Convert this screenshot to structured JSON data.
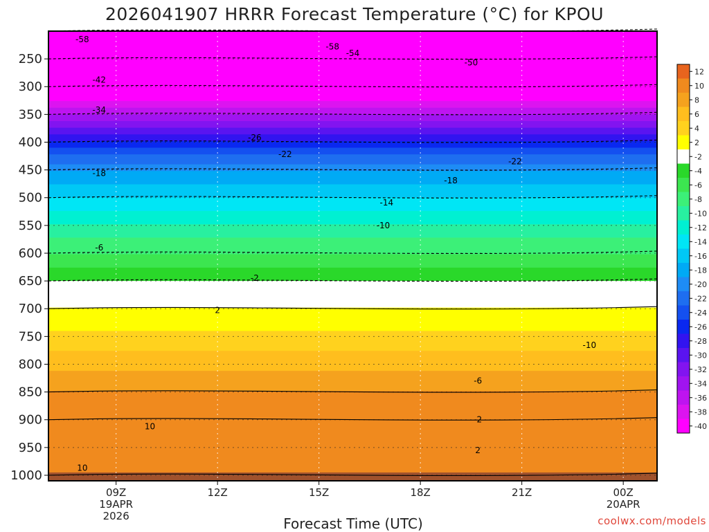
{
  "title": "2026041907 HRRR Forecast Temperature (°C) for KPOU",
  "credit": "coolwx.com/models",
  "colors": {
    "ground": "#a0522d",
    "frame": "#000000",
    "grid": "#999999"
  },
  "chart_data": {
    "type": "heatmap",
    "title": "2026041907 HRRR Forecast Temperature (°C) for KPOU",
    "xlabel": "Forecast Time (UTC)",
    "ylabel": "",
    "x_range_hours": [
      7,
      25
    ],
    "y_range_hpa": [
      200,
      1010
    ],
    "y_ticks": [
      {
        "value": 250,
        "label": "250"
      },
      {
        "value": 300,
        "label": "300"
      },
      {
        "value": 350,
        "label": "350"
      },
      {
        "value": 400,
        "label": "400"
      },
      {
        "value": 450,
        "label": "450"
      },
      {
        "value": 500,
        "label": "500"
      },
      {
        "value": 550,
        "label": "550"
      },
      {
        "value": 600,
        "label": "600"
      },
      {
        "value": 650,
        "label": "650"
      },
      {
        "value": 700,
        "label": "700"
      },
      {
        "value": 750,
        "label": "750"
      },
      {
        "value": 800,
        "label": "800"
      },
      {
        "value": 850,
        "label": "850"
      },
      {
        "value": 900,
        "label": "900"
      },
      {
        "value": 950,
        "label": "950"
      },
      {
        "value": 1000,
        "label": "1000"
      }
    ],
    "x_ticks": [
      {
        "hour": 9,
        "lines": [
          "09Z",
          "19APR",
          "2026"
        ]
      },
      {
        "hour": 12,
        "lines": [
          "12Z"
        ]
      },
      {
        "hour": 15,
        "lines": [
          "15Z"
        ]
      },
      {
        "hour": 18,
        "lines": [
          "18Z"
        ]
      },
      {
        "hour": 21,
        "lines": [
          "21Z"
        ]
      },
      {
        "hour": 24,
        "lines": [
          "00Z",
          "20APR"
        ]
      }
    ],
    "colorbar": [
      {
        "label": "12",
        "color": "#e8641e"
      },
      {
        "label": "10",
        "color": "#f08a1e"
      },
      {
        "label": "8",
        "color": "#f5a21e"
      },
      {
        "label": "6",
        "color": "#ffbe1e"
      },
      {
        "label": "4",
        "color": "#ffd21e"
      },
      {
        "label": "2",
        "color": "#ffff00"
      },
      {
        "label": "-2",
        "color": "#ffffff"
      },
      {
        "label": "-4",
        "color": "#2ad82a"
      },
      {
        "label": "-6",
        "color": "#3ce650"
      },
      {
        "label": "-8",
        "color": "#3cf078"
      },
      {
        "label": "-10",
        "color": "#28f0a0"
      },
      {
        "label": "-12",
        "color": "#00f0d2"
      },
      {
        "label": "-14",
        "color": "#00e6f5"
      },
      {
        "label": "-16",
        "color": "#00c8f5"
      },
      {
        "label": "-18",
        "color": "#00aaf5"
      },
      {
        "label": "-20",
        "color": "#1e8cf5"
      },
      {
        "label": "-22",
        "color": "#1e6ef0"
      },
      {
        "label": "-24",
        "color": "#1450f0"
      },
      {
        "label": "-26",
        "color": "#0a28f0"
      },
      {
        "label": "-28",
        "color": "#3214f0"
      },
      {
        "label": "-30",
        "color": "#5a14f0"
      },
      {
        "label": "-32",
        "color": "#8214f0"
      },
      {
        "label": "-34",
        "color": "#a014f0"
      },
      {
        "label": "-36",
        "color": "#be14f0"
      },
      {
        "label": "-38",
        "color": "#dc14f0"
      },
      {
        "label": "-40",
        "color": "#ff00ff"
      }
    ],
    "temperature_profile_09Z": [
      {
        "p": 1000,
        "t": 10
      },
      {
        "p": 900,
        "t": 11
      },
      {
        "p": 850,
        "t": 10
      },
      {
        "p": 700,
        "t": 2
      },
      {
        "p": 650,
        "t": -2
      },
      {
        "p": 600,
        "t": -6
      },
      {
        "p": 500,
        "t": -14
      },
      {
        "p": 450,
        "t": -18
      },
      {
        "p": 400,
        "t": -26
      },
      {
        "p": 350,
        "t": -34
      },
      {
        "p": 300,
        "t": -42
      },
      {
        "p": 250,
        "t": -50
      },
      {
        "p": 200,
        "t": -58
      }
    ],
    "contour_labels": [
      {
        "text": "-58",
        "hour": 8.0,
        "p": 215
      },
      {
        "text": "-58",
        "hour": 15.4,
        "p": 228
      },
      {
        "text": "-54",
        "hour": 16.0,
        "p": 240
      },
      {
        "text": "-50",
        "hour": 19.5,
        "p": 257
      },
      {
        "text": "-42",
        "hour": 8.5,
        "p": 288
      },
      {
        "text": "-34",
        "hour": 8.5,
        "p": 342
      },
      {
        "text": "-26",
        "hour": 13.1,
        "p": 392
      },
      {
        "text": "-22",
        "hour": 14.0,
        "p": 422
      },
      {
        "text": "-22",
        "hour": 20.8,
        "p": 435
      },
      {
        "text": "-18",
        "hour": 8.5,
        "p": 456
      },
      {
        "text": "-18",
        "hour": 18.9,
        "p": 469
      },
      {
        "text": "-14",
        "hour": 17.0,
        "p": 509
      },
      {
        "text": "-10",
        "hour": 16.9,
        "p": 550
      },
      {
        "text": "-6",
        "hour": 8.5,
        "p": 590
      },
      {
        "text": "-2",
        "hour": 13.1,
        "p": 645
      },
      {
        "text": "2",
        "hour": 12.0,
        "p": 703
      },
      {
        "text": "-10",
        "hour": 23.0,
        "p": 766
      },
      {
        "text": "-6",
        "hour": 19.7,
        "p": 830
      },
      {
        "text": "-2",
        "hour": 19.7,
        "p": 900
      },
      {
        "text": "2",
        "hour": 19.7,
        "p": 955
      },
      {
        "text": "10",
        "hour": 10.0,
        "p": 912
      },
      {
        "text": "10",
        "hour": 8.0,
        "p": 987
      }
    ]
  }
}
